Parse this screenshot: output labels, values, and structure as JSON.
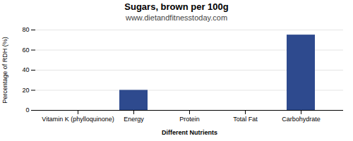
{
  "chart_data": {
    "type": "bar",
    "title": "Sugars, brown per 100g",
    "subtitle": "www.dietandfitnesstoday.com",
    "xlabel": "Different Nutrients",
    "ylabel": "Percentage of RDH (%)",
    "categories": [
      "Vitamin K (phylloquinone)",
      "Energy",
      "Protein",
      "Total Fat",
      "Carbohydrate"
    ],
    "values": [
      0,
      20,
      0,
      0,
      75
    ],
    "color": "#2e4a8e",
    "ylim": [
      0,
      80
    ],
    "yticks": [
      0,
      20,
      40,
      60,
      80
    ],
    "grid": true
  }
}
